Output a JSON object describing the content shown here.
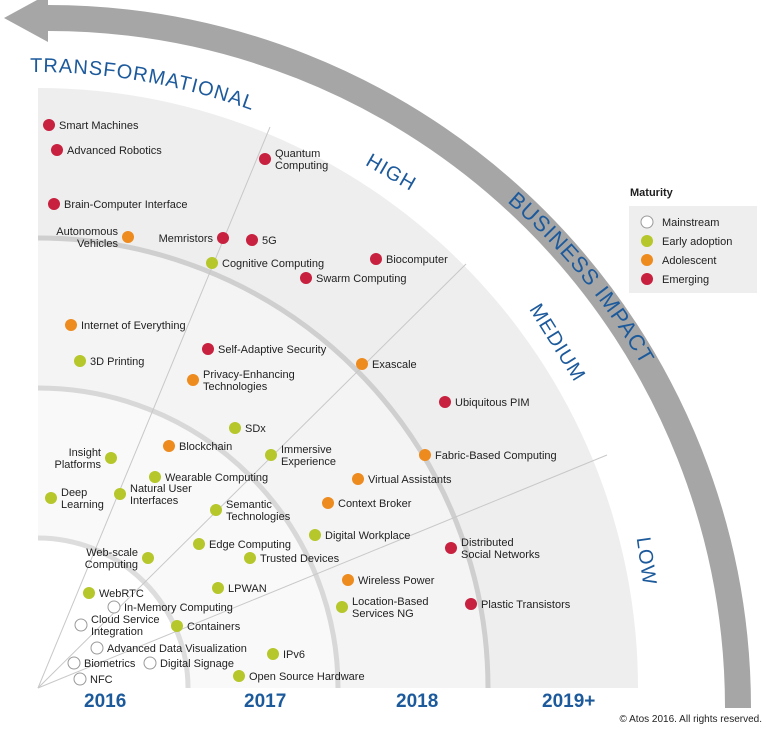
{
  "arrow_title": "BUSINESS IMPACT",
  "impact_bands": [
    "TRANSFORMATIONAL",
    "HIGH",
    "MEDIUM",
    "LOW"
  ],
  "years": [
    "2016",
    "2017",
    "2018",
    "2019+"
  ],
  "legend": {
    "title": "Maturity",
    "items": [
      {
        "label": "Mainstream",
        "color": "#ffffff"
      },
      {
        "label": "Early adoption",
        "color": "#b5c72a"
      },
      {
        "label": "Adolescent",
        "color": "#ee8b1f"
      },
      {
        "label": "Emerging",
        "color": "#c8203f"
      }
    ]
  },
  "copyright": "© Atos 2016. All rights reserved.",
  "technologies": [
    {
      "label": [
        "Smart Machines"
      ],
      "maturity": "Emerging"
    },
    {
      "label": [
        "Advanced Robotics"
      ],
      "maturity": "Emerging"
    },
    {
      "label": [
        "Brain-Computer Interface"
      ],
      "maturity": "Emerging"
    },
    {
      "label": [
        "Autonomous",
        "Vehicles"
      ],
      "maturity": "Adolescent"
    },
    {
      "label": [
        "Memristors"
      ],
      "maturity": "Emerging"
    },
    {
      "label": [
        "5G"
      ],
      "maturity": "Emerging"
    },
    {
      "label": [
        "Quantum",
        "Computing"
      ],
      "maturity": "Emerging"
    },
    {
      "label": [
        "Cognitive Computing"
      ],
      "maturity": "Early adoption"
    },
    {
      "label": [
        "Swarm Computing"
      ],
      "maturity": "Emerging"
    },
    {
      "label": [
        "Biocomputer"
      ],
      "maturity": "Emerging"
    },
    {
      "label": [
        "Internet of Everything"
      ],
      "maturity": "Adolescent"
    },
    {
      "label": [
        "3D Printing"
      ],
      "maturity": "Early adoption"
    },
    {
      "label": [
        "Self-Adaptive Security"
      ],
      "maturity": "Emerging"
    },
    {
      "label": [
        "Privacy-Enhancing",
        "Technologies"
      ],
      "maturity": "Adolescent"
    },
    {
      "label": [
        "Exascale"
      ],
      "maturity": "Adolescent"
    },
    {
      "label": [
        "Ubiquitous PIM"
      ],
      "maturity": "Emerging"
    },
    {
      "label": [
        "SDx"
      ],
      "maturity": "Early adoption"
    },
    {
      "label": [
        "Blockchain"
      ],
      "maturity": "Adolescent"
    },
    {
      "label": [
        "Insight",
        "Platforms"
      ],
      "maturity": "Early adoption"
    },
    {
      "label": [
        "Immersive",
        "Experience"
      ],
      "maturity": "Early adoption"
    },
    {
      "label": [
        "Fabric-Based Computing"
      ],
      "maturity": "Adolescent"
    },
    {
      "label": [
        "Wearable Computing"
      ],
      "maturity": "Early adoption"
    },
    {
      "label": [
        "Virtual Assistants"
      ],
      "maturity": "Adolescent"
    },
    {
      "label": [
        "Deep",
        "Learning"
      ],
      "maturity": "Early adoption"
    },
    {
      "label": [
        "Natural User",
        "Interfaces"
      ],
      "maturity": "Early adoption"
    },
    {
      "label": [
        "Context Broker"
      ],
      "maturity": "Adolescent"
    },
    {
      "label": [
        "Semantic",
        "Technologies"
      ],
      "maturity": "Early adoption"
    },
    {
      "label": [
        "Digital Workplace"
      ],
      "maturity": "Early adoption"
    },
    {
      "label": [
        "Edge Computing"
      ],
      "maturity": "Early adoption"
    },
    {
      "label": [
        "Distributed",
        "Social Networks"
      ],
      "maturity": "Emerging"
    },
    {
      "label": [
        "Web-scale",
        "Computing"
      ],
      "maturity": "Early adoption"
    },
    {
      "label": [
        "Trusted Devices"
      ],
      "maturity": "Early adoption"
    },
    {
      "label": [
        "Wireless Power"
      ],
      "maturity": "Adolescent"
    },
    {
      "label": [
        "LPWAN"
      ],
      "maturity": "Early adoption"
    },
    {
      "label": [
        "WebRTC"
      ],
      "maturity": "Early adoption"
    },
    {
      "label": [
        "Plastic Transistors"
      ],
      "maturity": "Emerging"
    },
    {
      "label": [
        "In-Memory Computing"
      ],
      "maturity": "Mainstream"
    },
    {
      "label": [
        "Location-Based",
        "Services NG"
      ],
      "maturity": "Early adoption"
    },
    {
      "label": [
        "Cloud Service",
        "Integration"
      ],
      "maturity": "Mainstream"
    },
    {
      "label": [
        "Containers"
      ],
      "maturity": "Early adoption"
    },
    {
      "label": [
        "Advanced Data Visualization"
      ],
      "maturity": "Mainstream"
    },
    {
      "label": [
        "IPv6"
      ],
      "maturity": "Early adoption"
    },
    {
      "label": [
        "Biometrics"
      ],
      "maturity": "Mainstream"
    },
    {
      "label": [
        "Digital Signage"
      ],
      "maturity": "Mainstream"
    },
    {
      "label": [
        "Open Source Hardware"
      ],
      "maturity": "Early adoption"
    },
    {
      "label": [
        "NFC"
      ],
      "maturity": "Mainstream"
    }
  ]
}
